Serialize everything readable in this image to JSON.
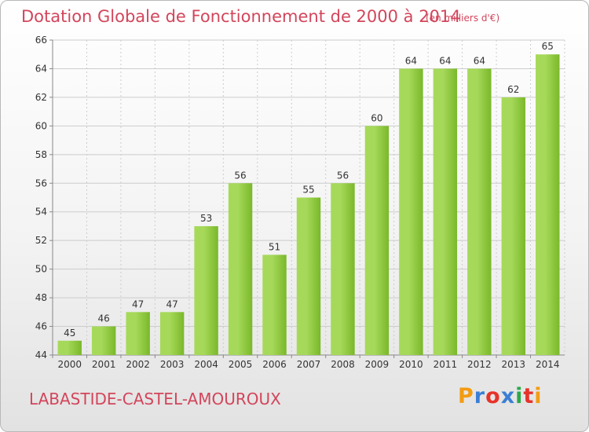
{
  "header": {
    "title": "Dotation Globale de Fonctionnement de 2000 à 2014",
    "unit": "(en milliers d'€)"
  },
  "footer": {
    "commune": "LABASTIDE-CASTEL-AMOUROUX",
    "logo_text": "Proxiti",
    "logo_colors": [
      "#f39c12",
      "#3a7fd5",
      "#e6332a",
      "#3a7fd5",
      "#2ba84a",
      "#e6332a",
      "#f39c12"
    ]
  },
  "chart_data": {
    "type": "bar",
    "title": "Dotation Globale de Fonctionnement de 2000 à 2014",
    "subtitle": "(en milliers d'€)",
    "xlabel": "",
    "ylabel": "",
    "categories": [
      "2000",
      "2001",
      "2002",
      "2003",
      "2004",
      "2005",
      "2006",
      "2007",
      "2008",
      "2009",
      "2010",
      "2011",
      "2012",
      "2013",
      "2014"
    ],
    "values": [
      45,
      46,
      47,
      47,
      53,
      56,
      51,
      55,
      56,
      60,
      64,
      64,
      64,
      62,
      65
    ],
    "ylim": [
      44,
      66
    ],
    "yticks": [
      44,
      46,
      48,
      50,
      52,
      54,
      56,
      58,
      60,
      62,
      64,
      66
    ],
    "grid": true,
    "data_labels": true,
    "bar_color": "#7ab82a",
    "bar_color_light": "#a6d95a",
    "grid_color": "#cccccc"
  }
}
